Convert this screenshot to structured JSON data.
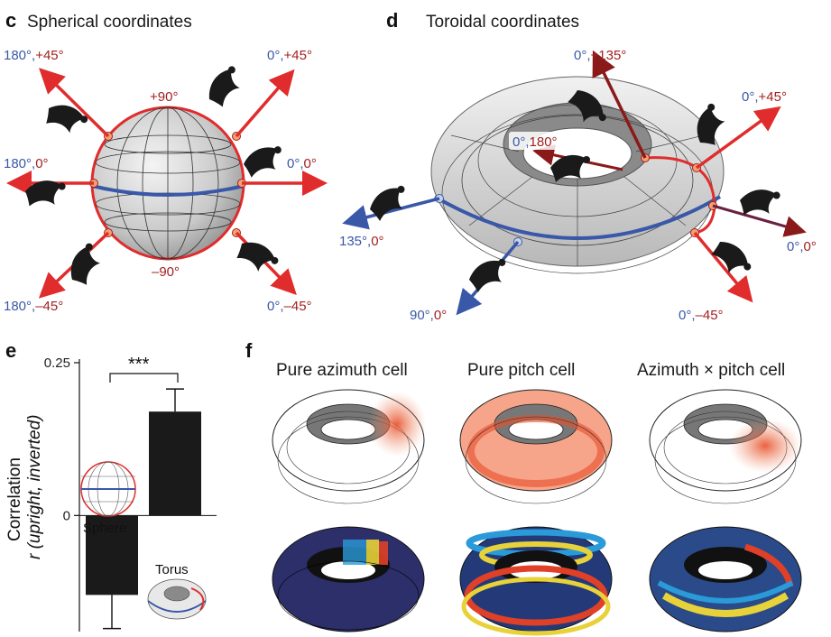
{
  "panels": {
    "c": {
      "letter": "c",
      "title": "Spherical coordinates",
      "labels": {
        "ul_b": "180°,",
        "ul_r": "+45°",
        "ur_b": "0°,",
        "ur_r": "+45°",
        "l_b": "180°,",
        "l_r": "0°",
        "r_b": "0°,",
        "r_r": "0°",
        "ll_b": "180°,",
        "ll_r": "–45°",
        "lr_b": "0°,",
        "lr_r": "–45°",
        "top": "+90°",
        "bottom": "–90°"
      }
    },
    "d": {
      "letter": "d",
      "title": "Toroidal coordinates",
      "labels": {
        "top_b": "0°,",
        "top_r": "+135°",
        "ur_b": "0°,",
        "ur_r": "+45°",
        "r_b": "0°,",
        "r_r": "0°",
        "lr_b": "0°,",
        "lr_r": "–45°",
        "inner_b": "0°,",
        "inner_r": "180°",
        "l_b": "135°,",
        "l_r": "0°",
        "bl_b": "90°,",
        "bl_r": "0°"
      }
    },
    "e": {
      "letter": "e",
      "ylabel_line1": "Correlation",
      "ylabel_line2": "r (upright, inverted)",
      "significance": "***",
      "legend_sphere": "Sphere",
      "legend_torus": "Torus"
    },
    "f": {
      "letter": "f",
      "titles": [
        "Pure azimuth cell",
        "Pure pitch cell",
        "Azimuth × pitch cell"
      ]
    }
  },
  "chart_data": {
    "type": "bar",
    "categories": [
      "Sphere",
      "Torus"
    ],
    "values": [
      -0.13,
      0.17
    ],
    "errors": [
      0.055,
      0.037
    ],
    "yticks": [
      "0.25",
      "0"
    ],
    "ylim": [
      -0.19,
      0.25
    ],
    "ylabel": "Correlation r (upright, inverted)",
    "colors": {
      "bar": "#1a1a1a"
    }
  },
  "colors": {
    "blue": "#3a58a8",
    "red": "#e02c2c",
    "dark_red": "#a32020"
  }
}
